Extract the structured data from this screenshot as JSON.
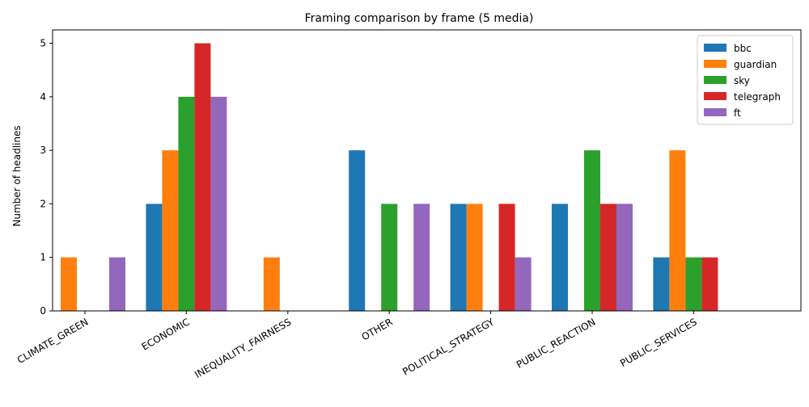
{
  "chart_data": {
    "type": "bar",
    "title": "Framing comparison by frame (5 media)",
    "xlabel": "",
    "ylabel": "Number of headlines",
    "ylim": [
      0,
      5.25
    ],
    "yticks": [
      0,
      1,
      2,
      3,
      4,
      5
    ],
    "grid": false,
    "legend_position": "top-right",
    "categories": [
      "CLIMATE_GREEN",
      "ECONOMIC",
      "INEQUALITY_FAIRNESS",
      "OTHER",
      "POLITICAL_STRATEGY",
      "PUBLIC_REACTION",
      "PUBLIC_SERVICES"
    ],
    "series": [
      {
        "name": "bbc",
        "color": "#1f77b4",
        "values": [
          0,
          2,
          0,
          3,
          2,
          2,
          1
        ]
      },
      {
        "name": "guardian",
        "color": "#ff7f0e",
        "values": [
          1,
          3,
          1,
          0,
          2,
          0,
          3
        ]
      },
      {
        "name": "sky",
        "color": "#2ca02c",
        "values": [
          0,
          4,
          0,
          2,
          0,
          3,
          1
        ]
      },
      {
        "name": "telegraph",
        "color": "#d62728",
        "values": [
          0,
          5,
          0,
          0,
          2,
          2,
          1
        ]
      },
      {
        "name": "ft",
        "color": "#9467bd",
        "values": [
          1,
          4,
          0,
          2,
          1,
          2,
          0
        ]
      }
    ]
  }
}
